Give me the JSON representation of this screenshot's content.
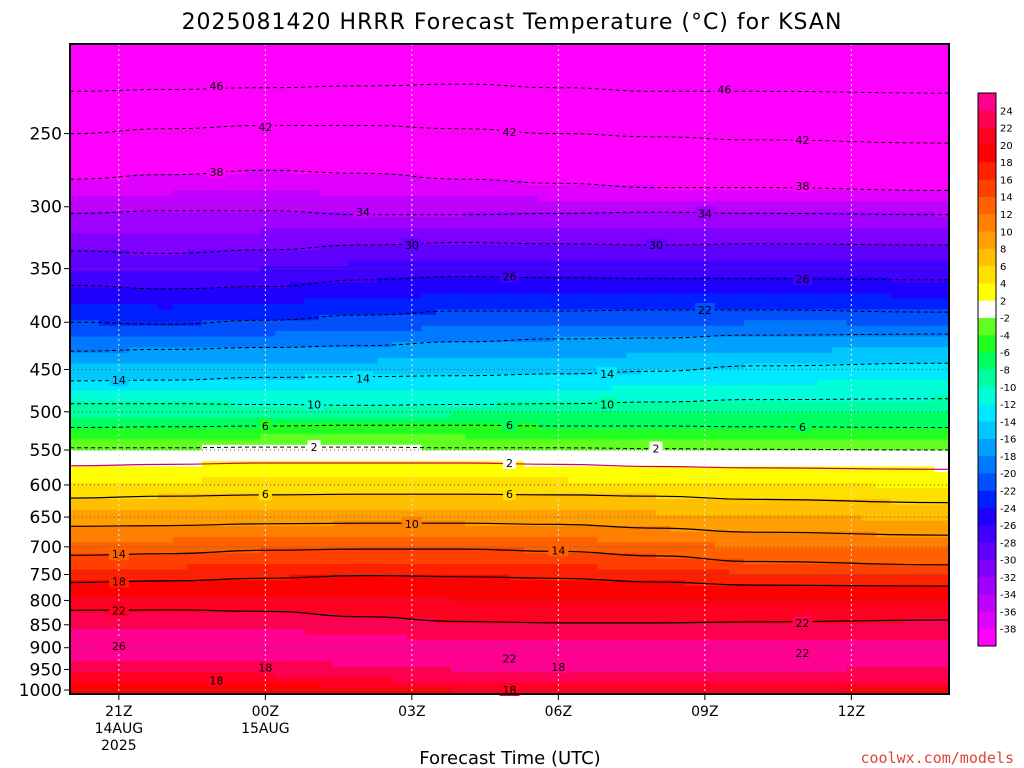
{
  "chart_data": {
    "type": "heatmap",
    "title": "2025081420 HRRR Forecast Temperature (°C) for KSAN",
    "xlabel": "Forecast Time (UTC)",
    "credit": "coolwx.com/models",
    "x_ticks": [
      {
        "hour": 0,
        "lines": [
          "21Z",
          "14AUG",
          "2025"
        ]
      },
      {
        "hour": 3,
        "lines": [
          "00Z",
          "15AUG"
        ]
      },
      {
        "hour": 6,
        "lines": [
          "03Z"
        ]
      },
      {
        "hour": 9,
        "lines": [
          "06Z"
        ]
      },
      {
        "hour": 12,
        "lines": [
          "09Z"
        ]
      },
      {
        "hour": 15,
        "lines": [
          "12Z"
        ]
      }
    ],
    "xlim_hours": [
      -1,
      17
    ],
    "ylabel": "",
    "y_ticks": [
      250,
      300,
      350,
      400,
      450,
      500,
      550,
      600,
      650,
      700,
      750,
      800,
      850,
      900,
      950,
      1000
    ],
    "ylim_hPa": [
      200,
      1010
    ],
    "color_levels": [
      -40,
      -38,
      -36,
      -34,
      -32,
      -30,
      -28,
      -26,
      -24,
      -22,
      -20,
      -18,
      -16,
      -14,
      -12,
      -10,
      -8,
      -6,
      -4,
      -2,
      2,
      4,
      6,
      8,
      10,
      12,
      14,
      16,
      18,
      20,
      22,
      24,
      26
    ],
    "colorbar_colors": [
      "#ff00ff",
      "#e000ff",
      "#c000ff",
      "#a000ff",
      "#8000ff",
      "#6000ff",
      "#4000ff",
      "#1e00ff",
      "#0020ff",
      "#0050ff",
      "#0078ff",
      "#00a0ff",
      "#00c8ff",
      "#00e8ff",
      "#00ffd8",
      "#00ffa0",
      "#00ff60",
      "#20ff20",
      "#60ff20",
      "#ffffff",
      "#ffff00",
      "#ffe000",
      "#ffc000",
      "#ffa000",
      "#ff8000",
      "#ff6000",
      "#ff4000",
      "#ff2000",
      "#ff0000",
      "#ff0020",
      "#ff0050",
      "#ff0090"
    ],
    "ground_color": "#a0522d",
    "sounding_hours": [
      -1,
      0,
      1,
      2,
      3,
      4,
      5,
      6,
      7,
      8,
      9,
      10,
      11,
      12,
      13,
      14,
      15,
      16,
      17
    ],
    "temperature_profile_at_hour0": [
      {
        "p": 200,
        "t": -50
      },
      {
        "p": 225,
        "t": -46
      },
      {
        "p": 250,
        "t": -42
      },
      {
        "p": 280,
        "t": -38
      },
      {
        "p": 305,
        "t": -34
      },
      {
        "p": 335,
        "t": -30
      },
      {
        "p": 365,
        "t": -26
      },
      {
        "p": 400,
        "t": -22
      },
      {
        "p": 425,
        "t": -18
      },
      {
        "p": 460,
        "t": -14
      },
      {
        "p": 490,
        "t": -10
      },
      {
        "p": 515,
        "t": -6
      },
      {
        "p": 545,
        "t": -2
      },
      {
        "p": 575,
        "t": 2
      },
      {
        "p": 620,
        "t": 6
      },
      {
        "p": 665,
        "t": 10
      },
      {
        "p": 715,
        "t": 14
      },
      {
        "p": 765,
        "t": 18
      },
      {
        "p": 820,
        "t": 22
      },
      {
        "p": 895,
        "t": 26
      },
      {
        "p": 960,
        "t": 22
      },
      {
        "p": 1000,
        "t": 18
      }
    ],
    "isotherms": [
      {
        "level": -46,
        "p": [
          225,
          224,
          223,
          222,
          221,
          223,
          225,
          225,
          226
        ]
      },
      {
        "level": -42,
        "p": [
          250,
          247,
          245,
          245,
          247,
          250,
          252,
          254,
          256
        ]
      },
      {
        "level": -38,
        "p": [
          280,
          277,
          274,
          276,
          280,
          283,
          286,
          286,
          288
        ]
      },
      {
        "level": -34,
        "p": [
          305,
          303,
          303,
          306,
          306,
          305,
          304,
          305,
          306
        ]
      },
      {
        "level": -30,
        "p": [
          335,
          337,
          334,
          330,
          328,
          329,
          330,
          329,
          330
        ]
      },
      {
        "level": -26,
        "p": [
          365,
          368,
          366,
          360,
          357,
          358,
          359,
          359,
          360
        ]
      },
      {
        "level": -22,
        "p": [
          400,
          402,
          398,
          393,
          389,
          389,
          388,
          388,
          390
        ]
      },
      {
        "level": -18,
        "p": [
          430,
          428,
          426,
          424,
          420,
          417,
          416,
          413,
          412
        ]
      },
      {
        "level": -14,
        "p": [
          463,
          462,
          459,
          458,
          457,
          455,
          452,
          446,
          443
        ]
      },
      {
        "level": -10,
        "p": [
          490,
          490,
          491,
          492,
          491,
          490,
          488,
          485,
          484
        ]
      },
      {
        "level": -6,
        "p": [
          520,
          519,
          518,
          517,
          517,
          518,
          518,
          519,
          520
        ]
      },
      {
        "level": -2,
        "p": [
          547,
          547,
          546,
          546,
          547,
          547,
          548,
          549,
          550
        ]
      },
      {
        "level": 2,
        "p": [
          572,
          570,
          568,
          568,
          568,
          570,
          573,
          575,
          577
        ]
      },
      {
        "level": 6,
        "p": [
          620,
          617,
          615,
          614,
          614,
          615,
          617,
          622,
          627
        ]
      },
      {
        "level": 10,
        "p": [
          665,
          664,
          661,
          660,
          660,
          662,
          668,
          675,
          680
        ]
      },
      {
        "level": 14,
        "p": [
          715,
          712,
          706,
          704,
          704,
          708,
          716,
          726,
          732
        ]
      },
      {
        "level": 18,
        "p": [
          765,
          762,
          757,
          752,
          754,
          757,
          764,
          770,
          772
        ]
      },
      {
        "level": 22,
        "p": [
          820,
          819,
          822,
          833,
          843,
          846,
          846,
          844,
          840
        ]
      }
    ],
    "isotherm_hours": [
      -1,
      1,
      3,
      5,
      7,
      9,
      11,
      13,
      17
    ],
    "labels": [
      {
        "text": "46",
        "hour": 2.0,
        "p": 222
      },
      {
        "text": "46",
        "hour": 12.4,
        "p": 224
      },
      {
        "text": "42",
        "hour": 3.0,
        "p": 246
      },
      {
        "text": "42",
        "hour": 8.0,
        "p": 249
      },
      {
        "text": "42",
        "hour": 14.0,
        "p": 254
      },
      {
        "text": "38",
        "hour": 2.0,
        "p": 275
      },
      {
        "text": "38",
        "hour": 14.0,
        "p": 285
      },
      {
        "text": "34",
        "hour": 5.0,
        "p": 304
      },
      {
        "text": "34",
        "hour": 12.0,
        "p": 305
      },
      {
        "text": "30",
        "hour": 6.0,
        "p": 330
      },
      {
        "text": "30",
        "hour": 11.0,
        "p": 330
      },
      {
        "text": "26",
        "hour": 8.0,
        "p": 357
      },
      {
        "text": "26",
        "hour": 14.0,
        "p": 359
      },
      {
        "text": "22",
        "hour": 12.0,
        "p": 388
      },
      {
        "text": "14",
        "hour": 0.0,
        "p": 462
      },
      {
        "text": "14",
        "hour": 5.0,
        "p": 460
      },
      {
        "text": "14",
        "hour": 10.0,
        "p": 455
      },
      {
        "text": "10",
        "hour": 4.0,
        "p": 491
      },
      {
        "text": "10",
        "hour": 10.0,
        "p": 491
      },
      {
        "text": "6",
        "hour": 3.0,
        "p": 518
      },
      {
        "text": "6",
        "hour": 8.0,
        "p": 517
      },
      {
        "text": "6",
        "hour": 14.0,
        "p": 519
      },
      {
        "text": "2",
        "hour": 4.0,
        "p": 546
      },
      {
        "text": "2",
        "hour": 11.0,
        "p": 548
      },
      {
        "text": "2",
        "hour": 8.0,
        "p": 568
      },
      {
        "text": "6",
        "hour": 3.0,
        "p": 614
      },
      {
        "text": "6",
        "hour": 8.0,
        "p": 614
      },
      {
        "text": "10",
        "hour": 6.0,
        "p": 661
      },
      {
        "text": "14",
        "hour": 0.0,
        "p": 713
      },
      {
        "text": "14",
        "hour": 9.0,
        "p": 706
      },
      {
        "text": "18",
        "hour": 0.0,
        "p": 763
      },
      {
        "text": "22",
        "hour": 0.0,
        "p": 820
      },
      {
        "text": "22",
        "hour": 14.0,
        "p": 846
      },
      {
        "text": "26",
        "hour": 0.0,
        "p": 896
      },
      {
        "text": "22",
        "hour": 8.0,
        "p": 925
      },
      {
        "text": "22",
        "hour": 14.0,
        "p": 912
      },
      {
        "text": "18",
        "hour": 3.0,
        "p": 946
      },
      {
        "text": "18",
        "hour": 9.0,
        "p": 944
      },
      {
        "text": "18",
        "hour": 2.0,
        "p": 976
      },
      {
        "text": "18",
        "hour": 8.0,
        "p": 1000
      }
    ],
    "grid": true,
    "legend": "right"
  }
}
